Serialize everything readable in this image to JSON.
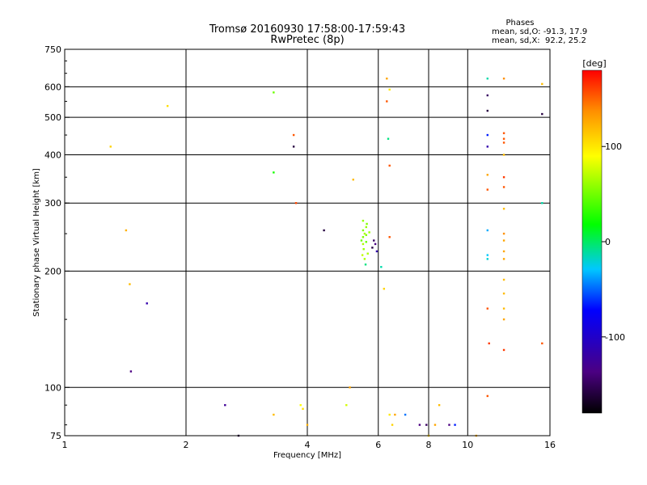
{
  "chart_data": {
    "type": "scatter",
    "title": "Tromsø 20160930 17:58:00-17:59:43",
    "subtitle": "RwPretec (8p)",
    "xlabel": "Frequency [MHz]",
    "ylabel": "Stationary phase Virtual Height [km]",
    "x_scale": "log",
    "y_scale": "log",
    "xlim": [
      1,
      16
    ],
    "ylim": [
      75,
      750
    ],
    "x_ticks": [
      1,
      2,
      4,
      6,
      8,
      10,
      16
    ],
    "y_ticks": [
      75,
      100,
      200,
      300,
      400,
      500,
      600,
      750
    ],
    "grid": true,
    "legend": {
      "title": "Phases",
      "lines": [
        "mean, sd,O: -91.3, 17.9",
        "mean, sd,X:  92.2, 25.2"
      ],
      "placement": "top-right"
    },
    "colorbar": {
      "label": "[deg]",
      "range": [
        -180,
        180
      ],
      "ticks": [
        100,
        0,
        -100
      ],
      "colors": [
        "#000000",
        "#4b0082",
        "#0000ff",
        "#00ffff",
        "#00ff00",
        "#ffff00",
        "#ff8000",
        "#ff0000"
      ]
    },
    "series": [
      {
        "points": [
          [
            1.3,
            420,
            100
          ],
          [
            1.42,
            255,
            115
          ],
          [
            1.45,
            185,
            110
          ],
          [
            1.6,
            165,
            -130
          ],
          [
            1.46,
            110,
            -140
          ],
          [
            1.8,
            535,
            95
          ],
          [
            2.5,
            90,
            -135
          ],
          [
            2.7,
            75,
            -160
          ],
          [
            3.3,
            580,
            45
          ],
          [
            3.3,
            360,
            25
          ],
          [
            3.3,
            85,
            110
          ],
          [
            3.7,
            450,
            150
          ],
          [
            3.7,
            420,
            -160
          ],
          [
            3.75,
            300,
            155
          ],
          [
            3.85,
            90,
            80
          ],
          [
            3.9,
            88,
            95
          ],
          [
            4.0,
            80,
            115
          ],
          [
            4.4,
            255,
            -160
          ],
          [
            5.2,
            345,
            110
          ],
          [
            5.0,
            90,
            70
          ],
          [
            5.1,
            100,
            120
          ],
          [
            6.1,
            205,
            -20
          ],
          [
            6.3,
            630,
            120
          ],
          [
            6.3,
            550,
            150
          ],
          [
            6.35,
            440,
            -10
          ],
          [
            6.4,
            375,
            150
          ],
          [
            6.4,
            245,
            150
          ],
          [
            6.4,
            590,
            90
          ],
          [
            6.2,
            180,
            100
          ],
          [
            6.4,
            85,
            90
          ],
          [
            6.5,
            80,
            100
          ],
          [
            6.6,
            85,
            120
          ],
          [
            7.0,
            85,
            -70
          ],
          [
            7.6,
            80,
            -140
          ],
          [
            7.9,
            80,
            -150
          ],
          [
            8.0,
            75,
            100
          ],
          [
            8.5,
            90,
            110
          ],
          [
            8.3,
            80,
            120
          ],
          [
            9.0,
            80,
            -140
          ],
          [
            9.3,
            80,
            -100
          ],
          [
            10.5,
            75,
            115
          ],
          [
            11.2,
            95,
            150
          ],
          [
            11.2,
            630,
            -20
          ],
          [
            11.2,
            570,
            -150
          ],
          [
            11.2,
            520,
            -160
          ],
          [
            11.2,
            450,
            -100
          ],
          [
            11.2,
            420,
            -130
          ],
          [
            11.2,
            355,
            120
          ],
          [
            11.2,
            325,
            150
          ],
          [
            11.2,
            255,
            -50
          ],
          [
            11.2,
            220,
            -40
          ],
          [
            11.2,
            215,
            -30
          ],
          [
            11.2,
            160,
            150
          ],
          [
            11.3,
            130,
            160
          ],
          [
            12.3,
            630,
            130
          ],
          [
            12.3,
            455,
            150
          ],
          [
            12.3,
            440,
            150
          ],
          [
            12.3,
            430,
            150
          ],
          [
            12.3,
            400,
            110
          ],
          [
            12.3,
            350,
            160
          ],
          [
            12.3,
            330,
            150
          ],
          [
            12.3,
            290,
            110
          ],
          [
            12.3,
            250,
            130
          ],
          [
            12.3,
            240,
            120
          ],
          [
            12.3,
            225,
            120
          ],
          [
            12.3,
            215,
            120
          ],
          [
            12.3,
            190,
            110
          ],
          [
            12.3,
            175,
            110
          ],
          [
            12.3,
            160,
            110
          ],
          [
            12.3,
            150,
            120
          ],
          [
            12.3,
            125,
            160
          ],
          [
            15.3,
            610,
            110
          ],
          [
            15.3,
            510,
            -160
          ],
          [
            15.3,
            300,
            -20
          ],
          [
            15.3,
            130,
            150
          ],
          [
            5.5,
            255,
            50
          ],
          [
            5.55,
            250,
            60
          ],
          [
            5.6,
            260,
            55
          ],
          [
            5.5,
            245,
            50
          ],
          [
            5.45,
            240,
            45
          ],
          [
            5.5,
            235,
            60
          ],
          [
            5.6,
            248,
            50
          ],
          [
            5.52,
            228,
            55
          ],
          [
            5.48,
            220,
            65
          ],
          [
            5.55,
            215,
            60
          ],
          [
            5.6,
            238,
            45
          ],
          [
            5.7,
            252,
            55
          ],
          [
            5.65,
            222,
            60
          ],
          [
            5.58,
            208,
            -10
          ],
          [
            5.62,
            265,
            50
          ],
          [
            5.5,
            270,
            55
          ],
          [
            5.8,
            230,
            -160
          ],
          [
            5.85,
            240,
            -150
          ],
          [
            5.9,
            235,
            -140
          ],
          [
            5.95,
            225,
            -130
          ]
        ]
      }
    ]
  }
}
